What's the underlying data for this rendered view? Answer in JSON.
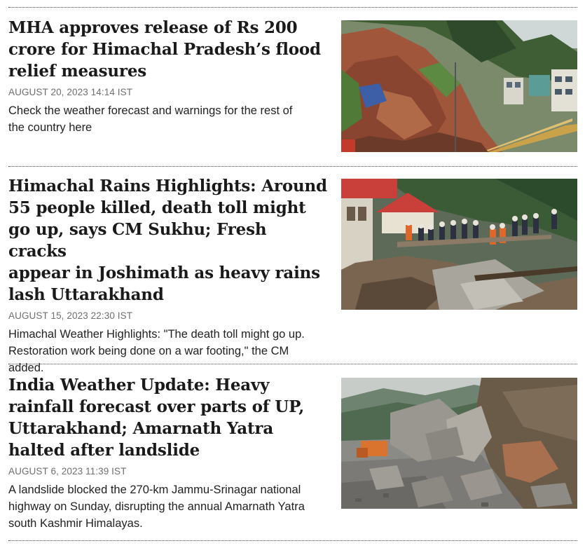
{
  "articles": [
    {
      "headline_lines": [
        "MHA approves release of Rs 200",
        "crore for Himachal Pradesh’s flood",
        "relief measures"
      ],
      "timestamp": "AUGUST 20, 2023 14:14 IST",
      "summary_lines": [
        "Check the weather forecast and warnings for the rest of",
        "the country here"
      ],
      "image": "hillside-landslide-buildings-photo"
    },
    {
      "headline_lines": [
        "Himachal Rains Highlights: Around",
        "55 people killed, death toll might",
        "go up, says CM Sukhu; Fresh cracks",
        "appear in Joshimath as heavy rains",
        "lash Uttarakhand"
      ],
      "timestamp": "AUGUST 15, 2023 22:30 IST",
      "summary_lines": [
        "Himachal Weather Highlights: \"The death toll might go up.",
        "Restoration work being done on a war footing,\" the CM",
        "added."
      ],
      "image": "rescue-workers-debris-photo"
    },
    {
      "headline_lines": [
        "India Weather Update: Heavy",
        "rainfall forecast over parts of UP,",
        "Uttarakhand; Amarnath Yatra",
        "halted after landslide"
      ],
      "timestamp": "AUGUST 6, 2023 11:39 IST",
      "summary_lines": [
        "A landslide blocked the 270-km Jammu-Srinagar national",
        "highway on Sunday, disrupting the annual Amarnath Yatra",
        "south Kashmir Himalayas."
      ],
      "image": "boulders-on-highway-photo"
    }
  ]
}
